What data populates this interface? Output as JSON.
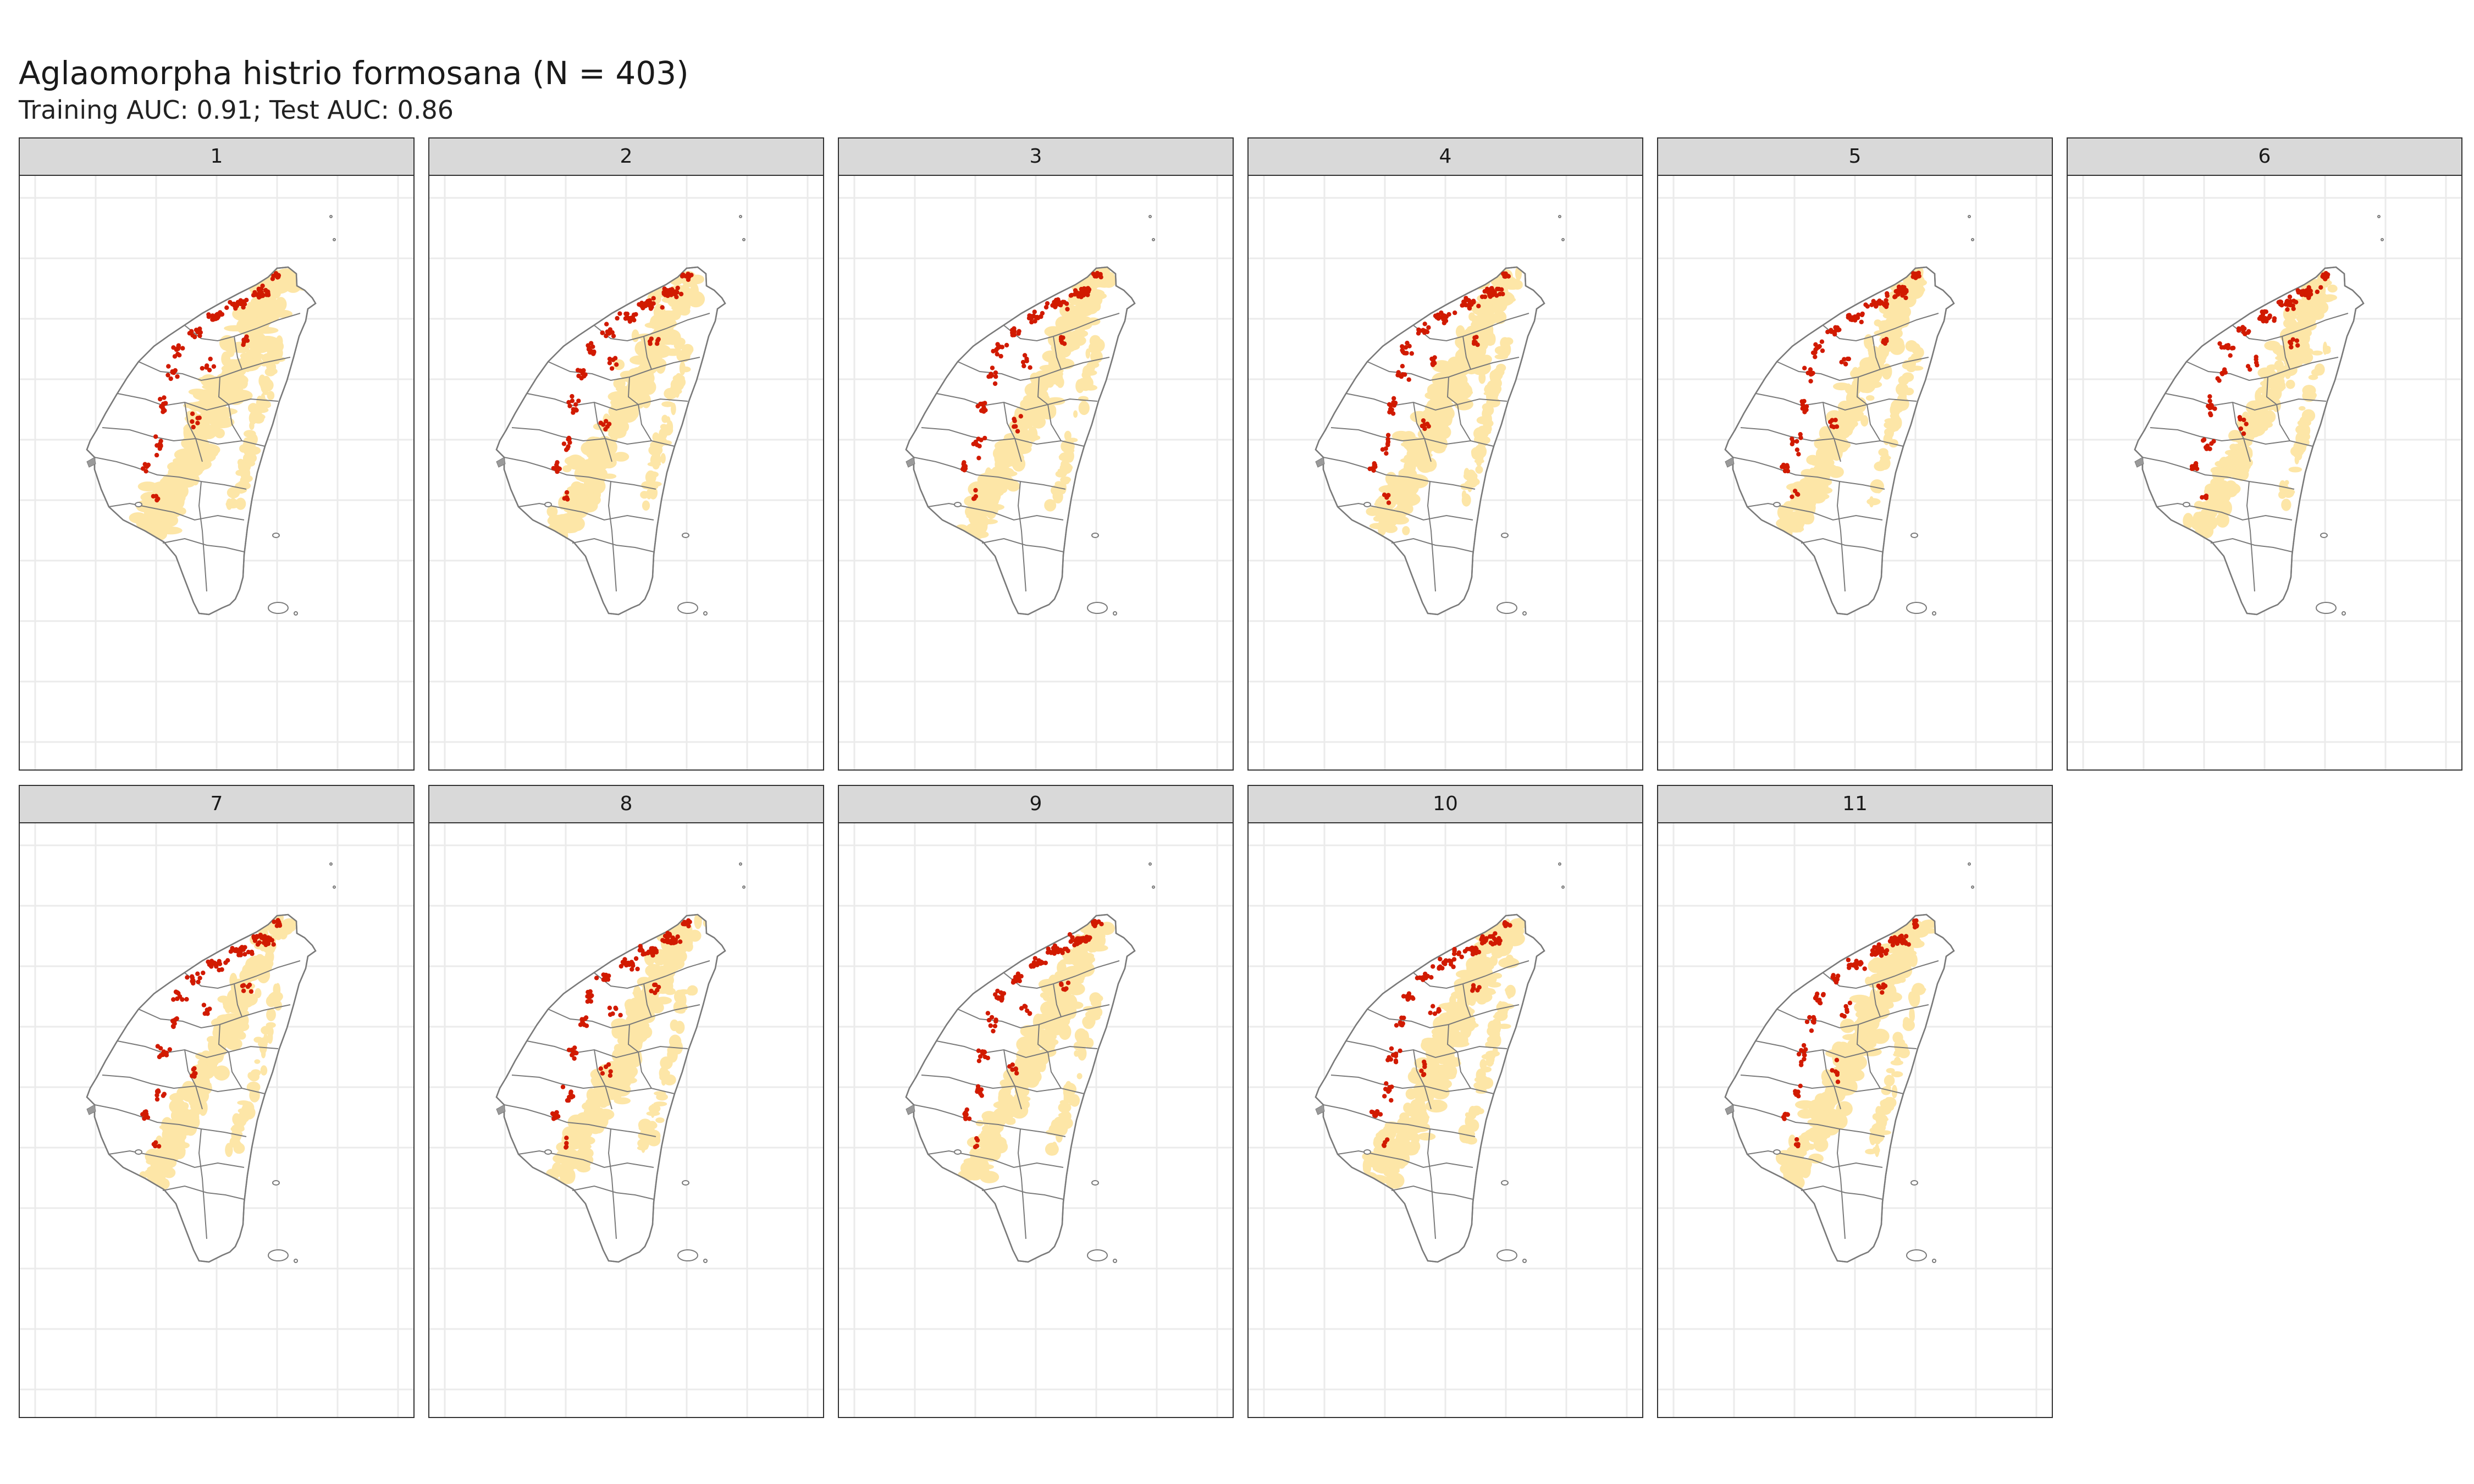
{
  "figure": {
    "title": "Aglaomorpha histrio formosana (N = 403)",
    "subtitle": "Training AUC: 0.91; Test AUC: 0.86"
  },
  "colors": {
    "suitable_area": "#fde6a7",
    "occurrence": "#d11a00",
    "outline": "#7a7a7a",
    "grid": "#ebebeb",
    "strip": "#d9d9d9"
  },
  "facets": [
    {
      "label": "1"
    },
    {
      "label": "2"
    },
    {
      "label": "3"
    },
    {
      "label": "4"
    },
    {
      "label": "5"
    },
    {
      "label": "6"
    },
    {
      "label": "7"
    },
    {
      "label": "8"
    },
    {
      "label": "9"
    },
    {
      "label": "10"
    },
    {
      "label": "11"
    }
  ]
}
